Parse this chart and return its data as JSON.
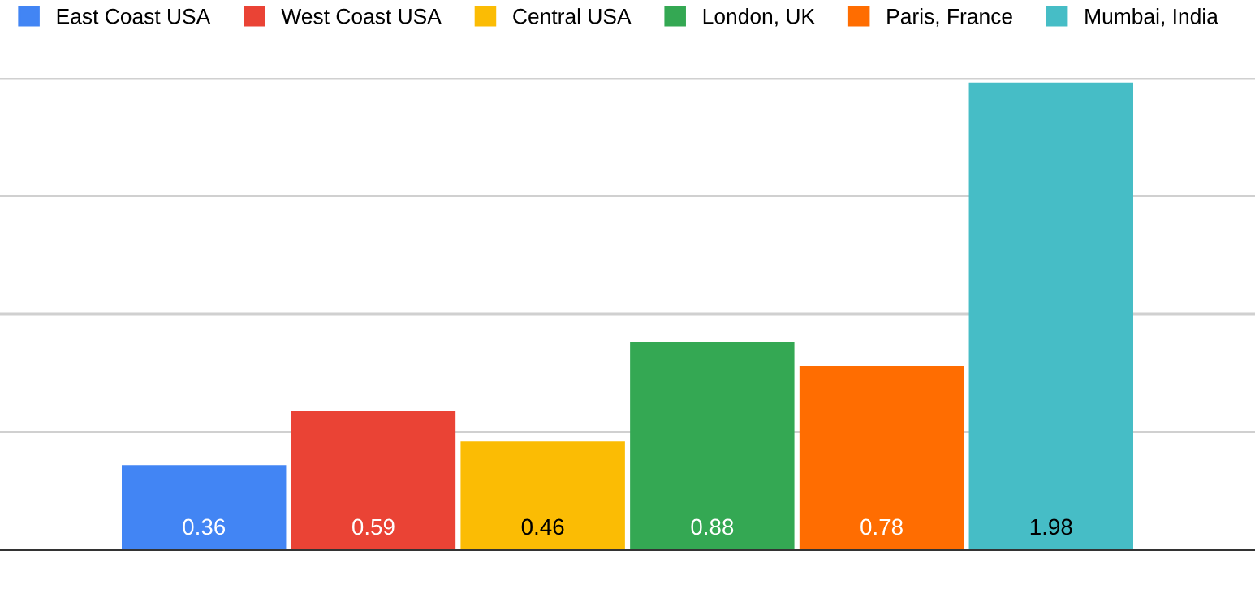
{
  "chart_data": {
    "type": "bar",
    "categories": [
      null
    ],
    "series": [
      {
        "name": "East Coast USA",
        "color": "#4285f4",
        "values": [
          0.36
        ]
      },
      {
        "name": "West Coast USA",
        "color": "#ea4335",
        "values": [
          0.59
        ]
      },
      {
        "name": "Central USA",
        "color": "#fbbc04",
        "values": [
          0.46
        ]
      },
      {
        "name": "London, UK",
        "color": "#34a853",
        "values": [
          0.88
        ]
      },
      {
        "name": "Paris, France",
        "color": "#ff6d01",
        "values": [
          0.78
        ]
      },
      {
        "name": "Mumbai, India",
        "color": "#46bdc6",
        "values": [
          1.98
        ]
      }
    ],
    "ylim": [
      0,
      2
    ],
    "yticks": [
      {
        "value": 0.5,
        "label": null
      },
      {
        "value": 1,
        "label": null
      },
      {
        "value": 1.5,
        "label": null
      },
      {
        "value": 2,
        "label": null
      }
    ],
    "grid": "y",
    "legend": "top",
    "data_labels": true
  }
}
